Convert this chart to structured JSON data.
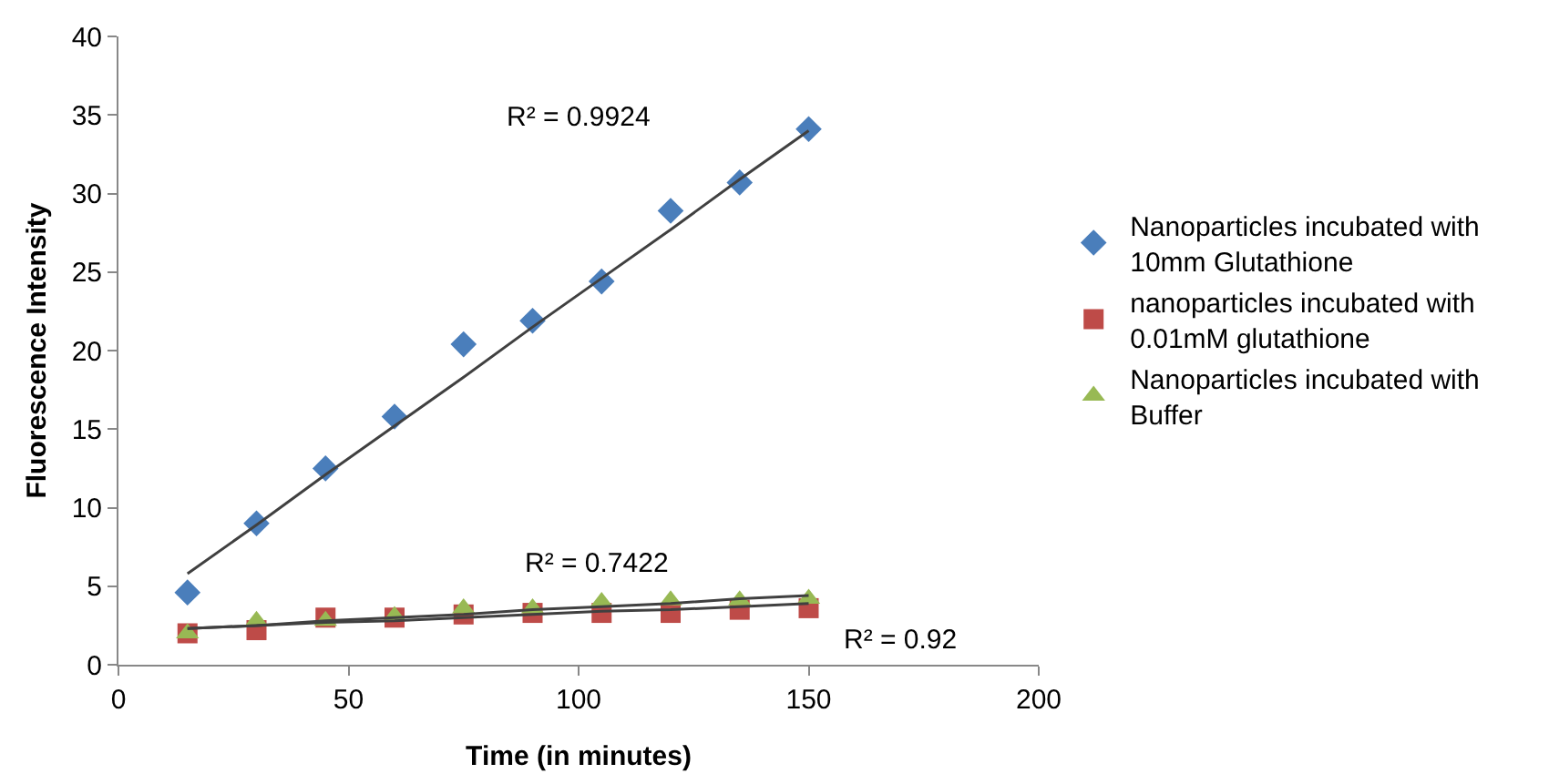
{
  "chart_data": {
    "type": "scatter",
    "xlabel": "Time (in minutes)",
    "ylabel": "Fluorescence Intensity",
    "x": [
      15,
      30,
      45,
      60,
      75,
      90,
      105,
      120,
      135,
      150
    ],
    "series": [
      {
        "name": "Nanoparticles incubated with 10mm Glutathione",
        "color": "#4a7ebb",
        "marker": "diamond",
        "values": [
          4.6,
          9,
          12.5,
          15.8,
          20.4,
          21.9,
          24.4,
          28.9,
          30.7,
          34.1
        ]
      },
      {
        "name": "nanoparticles incubated with 0.01mM glutathione",
        "color": "#be4b48",
        "marker": "square",
        "values": [
          2,
          2.2,
          3,
          3,
          3.2,
          3.3,
          3.3,
          3.3,
          3.5,
          3.6
        ]
      },
      {
        "name": "Nanoparticles incubated with Buffer",
        "color": "#98b954",
        "marker": "triangle",
        "values": [
          2,
          2.8,
          2.8,
          3.1,
          3.6,
          3.6,
          4,
          4.1,
          4.1,
          4.2
        ]
      },
      {
        "type": "line",
        "color": "#404040",
        "marker": "none",
        "values": [
          5.8,
          8.9,
          12.1,
          15.2,
          18.3,
          21.5,
          24.6,
          27.7,
          30.9,
          34
        ]
      },
      {
        "type": "line",
        "color": "#404040",
        "marker": "none",
        "values": [
          2.3,
          2.5,
          2.7,
          2.8,
          3,
          3.2,
          3.4,
          3.5,
          3.7,
          3.9
        ]
      },
      {
        "type": "line",
        "color": "#404040",
        "marker": "none",
        "values": [
          2.3,
          2.5,
          2.8,
          3,
          3.2,
          3.5,
          3.7,
          3.9,
          4.2,
          4.4
        ]
      }
    ],
    "xlim": [
      0,
      200
    ],
    "xticks": [
      0,
      50,
      100,
      150,
      200
    ],
    "ylim": [
      0,
      40
    ],
    "yticks": [
      0,
      5,
      10,
      15,
      20,
      25,
      30,
      35,
      40
    ],
    "grid": false,
    "legend": "right",
    "annotations": [
      "R² = 0.9924",
      "R² = 0.7422",
      "R² = 0.92"
    ]
  }
}
